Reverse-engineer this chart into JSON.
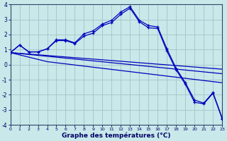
{
  "background_color": "#c8e8ea",
  "grid_color": "#a8c8cc",
  "line_color": "#0000bb",
  "xlabel": "Graphe des températures (°C)",
  "xlim": [
    0,
    23
  ],
  "ylim": [
    -4,
    4
  ],
  "yticks": [
    -4,
    -3,
    -2,
    -1,
    0,
    1,
    2,
    3,
    4
  ],
  "xticks": [
    0,
    1,
    2,
    3,
    4,
    5,
    6,
    7,
    8,
    9,
    10,
    11,
    12,
    13,
    14,
    15,
    16,
    17,
    18,
    19,
    20,
    21,
    22,
    23
  ],
  "curve_marked_x": [
    0,
    1,
    2,
    3,
    4,
    5,
    6,
    7,
    8,
    9,
    10,
    11,
    12,
    13,
    14,
    15,
    16,
    17,
    18,
    19,
    20,
    21,
    22,
    23
  ],
  "curve_marked_y": [
    0.8,
    1.3,
    0.85,
    0.85,
    1.05,
    1.65,
    1.65,
    1.45,
    2.05,
    2.25,
    2.7,
    2.95,
    3.5,
    3.85,
    2.95,
    2.6,
    2.5,
    1.05,
    -0.25,
    -1.2,
    -2.35,
    -2.55,
    -1.85,
    -3.55
  ],
  "curve2_x": [
    0,
    1,
    2,
    3,
    4,
    5,
    6,
    7,
    8,
    9,
    10,
    11,
    12,
    13,
    14,
    15,
    16,
    17,
    18,
    19,
    20,
    21,
    22,
    23
  ],
  "curve2_y": [
    0.8,
    1.3,
    0.85,
    0.85,
    1.05,
    1.6,
    1.6,
    1.4,
    1.9,
    2.1,
    2.6,
    2.8,
    3.35,
    3.75,
    2.85,
    2.45,
    2.4,
    0.9,
    -0.35,
    -1.3,
    -2.5,
    -2.6,
    -1.9,
    -3.6
  ],
  "line3_x": [
    0,
    23
  ],
  "line3_y": [
    0.8,
    -0.3
  ],
  "line4_x": [
    0,
    23
  ],
  "line4_y": [
    0.8,
    -0.6
  ],
  "line5_x": [
    0,
    4,
    23
  ],
  "line5_y": [
    0.8,
    0.2,
    -1.2
  ]
}
